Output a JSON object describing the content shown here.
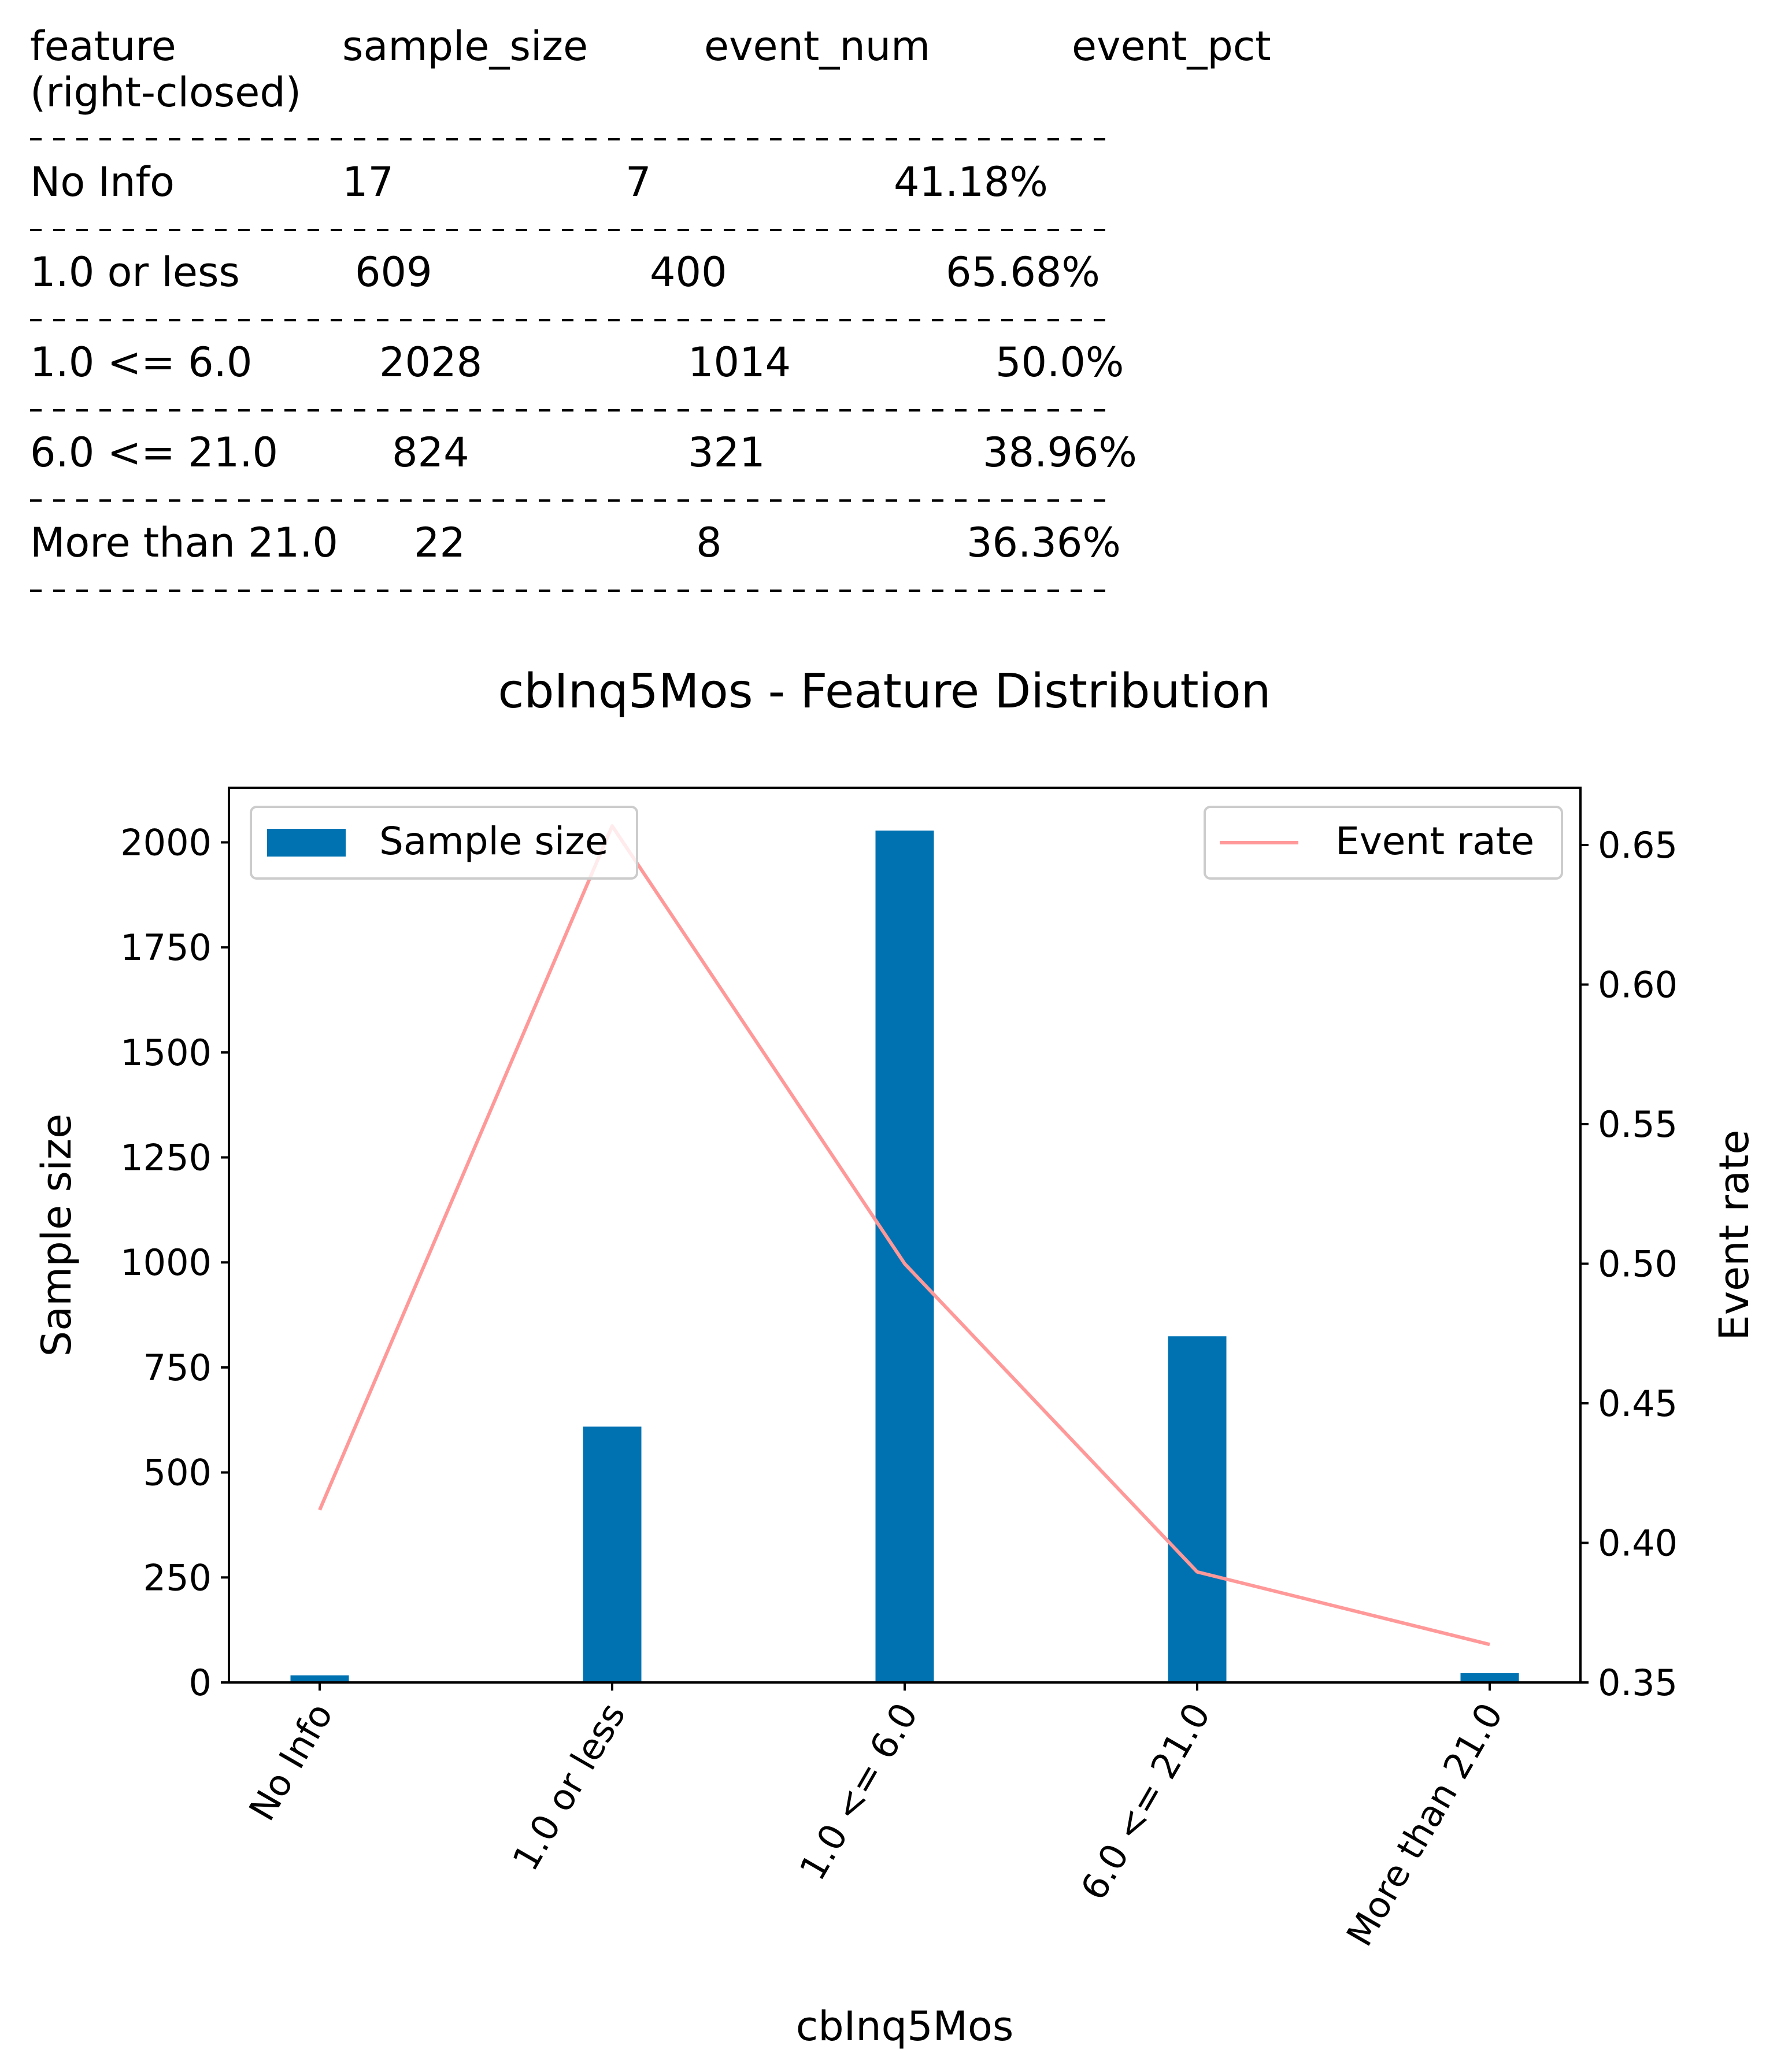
{
  "table": {
    "headers": [
      "feature",
      "sample_size",
      "event_num",
      "event_pct"
    ],
    "header_sub": "(right-closed)",
    "rows": [
      [
        "No Info",
        "17",
        "7",
        "41.18%"
      ],
      [
        "1.0 or less",
        "609",
        "400",
        "65.68%"
      ],
      [
        "1.0 <= 6.0",
        "2028",
        "1014",
        "50.0%"
      ],
      [
        "6.0 <= 21.0",
        "824",
        "321",
        "38.96%"
      ],
      [
        "More than 21.0",
        "22",
        "8",
        "36.36%"
      ]
    ]
  },
  "chart_data": {
    "type": "bar",
    "title": "cbInq5Mos - Feature Distribution",
    "xlabel": "cbInq5Mos",
    "ylabel": "Sample size",
    "y2label": "Event rate",
    "categories": [
      "No Info",
      "1.0 or less",
      "1.0 <= 6.0",
      "6.0 <= 21.0",
      "More than 21.0"
    ],
    "series": [
      {
        "name": "Sample size",
        "type": "bar",
        "axis": "left",
        "color": "#0072b2",
        "values": [
          17,
          609,
          2028,
          824,
          22
        ]
      },
      {
        "name": "Event rate",
        "type": "line",
        "axis": "right",
        "color": "#ff9999",
        "values": [
          0.4118,
          0.6568,
          0.5,
          0.3896,
          0.3636
        ]
      }
    ],
    "ylim": [
      0,
      2130
    ],
    "y2lim": [
      0.35,
      0.6705
    ],
    "yticks": [
      "0",
      "250",
      "500",
      "750",
      "1000",
      "1250",
      "1500",
      "1750",
      "2000"
    ],
    "y2ticks": [
      "0.35",
      "0.40",
      "0.45",
      "0.50",
      "0.55",
      "0.60",
      "0.65"
    ],
    "legend_left": "upper-left",
    "legend_right": "upper-right",
    "grid": false
  }
}
